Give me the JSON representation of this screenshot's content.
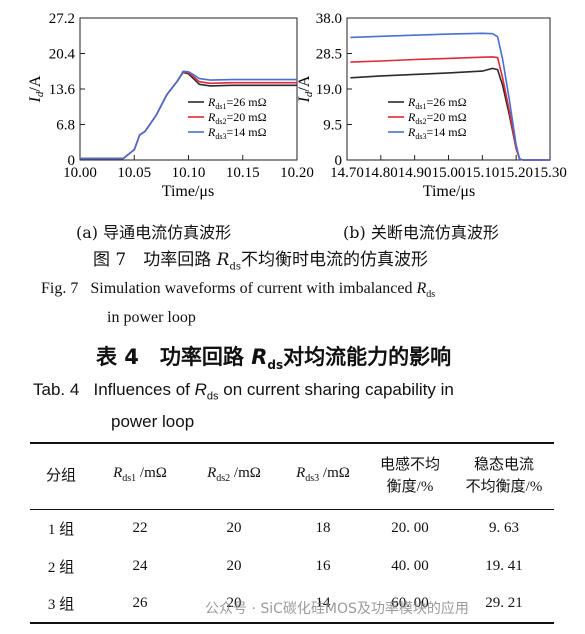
{
  "figure": {
    "charts": [
      {
        "ylabel": "I_d/A",
        "xlabel": "Time/μs",
        "yticks": [
          "27.2",
          "20.4",
          "13.6",
          "6.8",
          "0"
        ],
        "xticks": [
          "10.00",
          "10.05",
          "10.10",
          "10.15",
          "10.20"
        ],
        "legend": [
          "R_ds1=26 mΩ",
          "R_ds2=20 mΩ",
          "R_ds3=14 mΩ"
        ],
        "caption": "(a)  导通电流仿真波形"
      },
      {
        "ylabel": "I_d/A",
        "xlabel": "Time/μs",
        "yticks": [
          "38.0",
          "28.5",
          "19.0",
          "9.5",
          "0"
        ],
        "xticks": [
          "14.70",
          "14.80",
          "14.90",
          "15.00",
          "15.10",
          "15.20",
          "15.30"
        ],
        "legend": [
          "R_ds1=26 mΩ",
          "R_ds2=20 mΩ",
          "R_ds3=14 mΩ"
        ],
        "caption": "(b)  关断电流仿真波形"
      }
    ],
    "caption_cn": "图 7　功率回路 R_ds不均衡时电流的仿真波形",
    "caption_en_line1": "Fig. 7　Simulation waveforms of current with imbalanced R_ds",
    "caption_en_line2": "in power loop"
  },
  "table": {
    "title_cn": "表 4　功率回路 R_ds对均流能力的影响",
    "title_en_line1": "Tab. 4　Influences of R_ds on current sharing capability in",
    "title_en_line2": "power loop",
    "headers": [
      "分组",
      "R_ds1 /mΩ",
      "R_ds2 /mΩ",
      "R_ds3 /mΩ",
      "电感不均\n衡度/%",
      "稳态电流\n不均衡度/%"
    ],
    "rows": [
      [
        "1 组",
        "22",
        "20",
        "18",
        "20. 00",
        "9. 63"
      ],
      [
        "2 组",
        "24",
        "20",
        "16",
        "40. 00",
        "19. 41"
      ],
      [
        "3 组",
        "26",
        "20",
        "14",
        "60. 00",
        "29. 21"
      ]
    ]
  },
  "watermark": "公众号 · SiC碳化硅MOS及功率模块的应用",
  "colors": {
    "rds1": "#2b2b2b",
    "rds2": "#e0283a",
    "rds3": "#4a6fd0"
  },
  "chart_data": [
    {
      "type": "line",
      "xlim": [
        10.0,
        10.2
      ],
      "ylim": [
        0,
        27.2
      ],
      "x": [
        10.0,
        10.04,
        10.05,
        10.055,
        10.06,
        10.07,
        10.08,
        10.09,
        10.095,
        10.1,
        10.105,
        10.11,
        10.12,
        10.14,
        10.16,
        10.18,
        10.2
      ],
      "series": [
        {
          "name": "R_ds1=26 mΩ",
          "values": [
            0.3,
            0.3,
            2.0,
            4.8,
            5.5,
            8.5,
            12.5,
            15.2,
            16.8,
            16.5,
            15.5,
            14.5,
            14.2,
            14.3,
            14.3,
            14.3,
            14.3
          ]
        },
        {
          "name": "R_ds2=20 mΩ",
          "values": [
            0.3,
            0.3,
            2.0,
            4.8,
            5.5,
            8.5,
            12.5,
            15.2,
            16.9,
            16.7,
            15.9,
            15.0,
            14.7,
            14.8,
            14.8,
            14.8,
            14.8
          ]
        },
        {
          "name": "R_ds3=14 mΩ",
          "values": [
            0.3,
            0.3,
            2.0,
            4.8,
            5.5,
            8.5,
            12.5,
            15.2,
            17.0,
            16.9,
            16.3,
            15.6,
            15.3,
            15.4,
            15.4,
            15.4,
            15.4
          ]
        }
      ]
    },
    {
      "type": "line",
      "xlim": [
        14.7,
        15.3
      ],
      "ylim": [
        0,
        38.0
      ],
      "x": [
        14.71,
        14.8,
        14.9,
        15.0,
        15.1,
        15.13,
        15.145,
        15.16,
        15.18,
        15.2,
        15.21,
        15.22,
        15.3
      ],
      "series": [
        {
          "name": "R_ds1=26 mΩ",
          "values": [
            22.0,
            22.5,
            22.9,
            23.3,
            23.8,
            24.5,
            24.2,
            20.0,
            12.0,
            3.0,
            0.3,
            0,
            0
          ]
        },
        {
          "name": "R_ds2=20 mΩ",
          "values": [
            26.2,
            26.5,
            26.9,
            27.2,
            27.5,
            27.6,
            27.4,
            22.0,
            13.0,
            3.0,
            0.3,
            0,
            0
          ]
        },
        {
          "name": "R_ds3=14 mΩ",
          "values": [
            32.8,
            33.1,
            33.4,
            33.7,
            33.9,
            33.8,
            33.0,
            27.0,
            16.0,
            4.0,
            0.3,
            0,
            0
          ]
        }
      ]
    }
  ]
}
